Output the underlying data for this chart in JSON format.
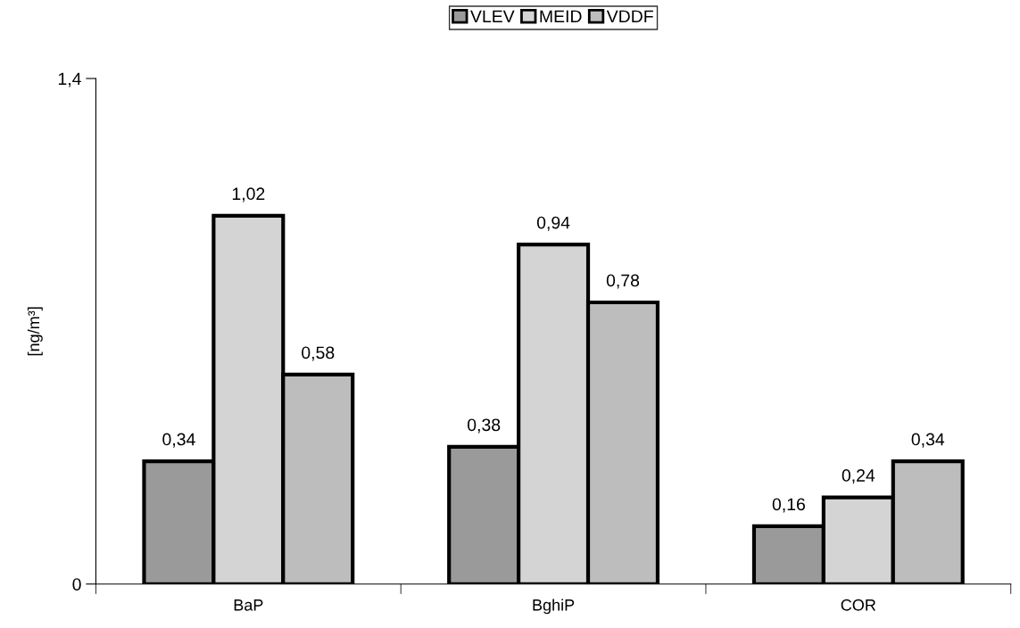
{
  "chart_data": {
    "type": "bar",
    "ylabel": "[ng/m³]",
    "categories": [
      "BaP",
      "BghiP",
      "COR"
    ],
    "series": [
      {
        "name": "VLEV",
        "color": "#9a9a9a",
        "values": [
          0.34,
          0.38,
          0.16
        ],
        "value_labels": [
          "0,34",
          "0,38",
          "0,16"
        ]
      },
      {
        "name": "MEID",
        "color": "#d4d4d4",
        "values": [
          1.02,
          0.94,
          0.24
        ],
        "value_labels": [
          "1,02",
          "0,94",
          "0,24"
        ]
      },
      {
        "name": "VDDF",
        "color": "#bdbdbd",
        "values": [
          0.58,
          0.78,
          0.34
        ],
        "value_labels": [
          "0,58",
          "0,78",
          "0,34"
        ]
      }
    ],
    "ylim": [
      0,
      1.4
    ],
    "yticks": [
      0,
      {
        "value": 1.4,
        "label": "1,4"
      }
    ],
    "grid": false,
    "legend": "top"
  }
}
